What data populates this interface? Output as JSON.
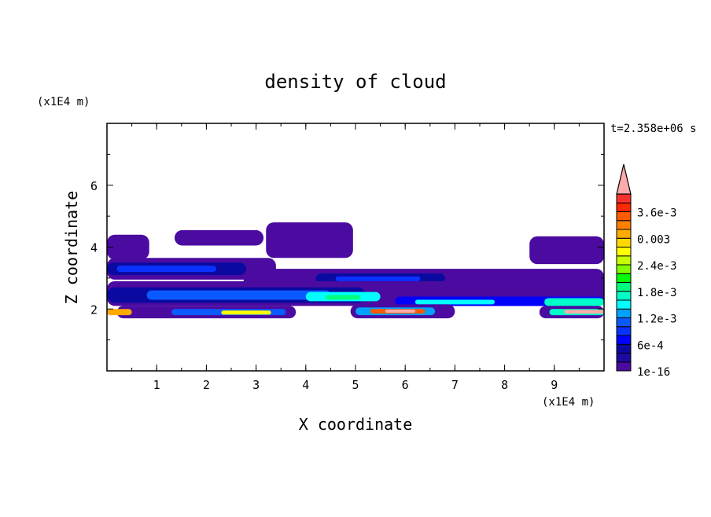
{
  "chart_data": {
    "type": "heatmap",
    "title": "density of cloud",
    "xlabel": "X coordinate",
    "ylabel": "Z coordinate",
    "x_unit": "(x1E4 m)",
    "y_unit": "(x1E4 m)",
    "time_label": "t=2.358e+06 s",
    "xlim": [
      0,
      10
    ],
    "ylim": [
      0,
      8
    ],
    "x_ticks": [
      "1",
      "2",
      "3",
      "4",
      "5",
      "6",
      "7",
      "8",
      "9"
    ],
    "y_ticks": [
      "2",
      "4",
      "6"
    ],
    "grid": false,
    "colorbar": {
      "position": "right",
      "levels_step": 0.0002,
      "max": 0.004,
      "extend": "max",
      "tick_labels": [
        "1e-16",
        "6e-4",
        "1.2e-3",
        "1.8e-3",
        "2.4e-3",
        "0.003",
        "3.6e-3"
      ],
      "colors": [
        "#4b0aa0",
        "#1e0aa0",
        "#0a0aa0",
        "#0000ff",
        "#0a32ff",
        "#0a5aff",
        "#00a0ff",
        "#00ffff",
        "#00ffc8",
        "#00ff80",
        "#00ff00",
        "#80ff00",
        "#c8ff00",
        "#ffff00",
        "#ffd700",
        "#ffaa00",
        "#ff8000",
        "#ff5a00",
        "#ff2800",
        "#ff3030"
      ],
      "over_color": "#ffaaaa"
    },
    "regions": [
      {
        "x": [
          0,
          0.85
        ],
        "z": [
          3.6,
          4.4
        ],
        "level": 0
      },
      {
        "x": [
          1.36,
          3.15
        ],
        "z": [
          4.05,
          4.55
        ],
        "level": 0
      },
      {
        "x": [
          3.2,
          4.95
        ],
        "z": [
          3.65,
          4.8
        ],
        "level": 0
      },
      {
        "x": [
          8.5,
          10
        ],
        "z": [
          3.45,
          4.35
        ],
        "level": 0
      },
      {
        "x": [
          0,
          3.4
        ],
        "z": [
          2.95,
          3.65
        ],
        "level": 0
      },
      {
        "x": [
          0,
          2.8
        ],
        "z": [
          3.1,
          3.5
        ],
        "level": 2
      },
      {
        "x": [
          0.2,
          2.2
        ],
        "z": [
          3.2,
          3.4
        ],
        "level": 4
      },
      {
        "x": [
          2.75,
          10
        ],
        "z": [
          2.5,
          3.3
        ],
        "level": 0
      },
      {
        "x": [
          4.2,
          6.8
        ],
        "z": [
          2.8,
          3.15
        ],
        "level": 2
      },
      {
        "x": [
          4.6,
          6.3
        ],
        "z": [
          2.9,
          3.05
        ],
        "level": 4
      },
      {
        "x": [
          0,
          10
        ],
        "z": [
          2.1,
          2.9
        ],
        "level": 0
      },
      {
        "x": [
          0,
          5.2
        ],
        "z": [
          2.2,
          2.7
        ],
        "level": 2
      },
      {
        "x": [
          0.8,
          4.5
        ],
        "z": [
          2.3,
          2.6
        ],
        "level": 5
      },
      {
        "x": [
          4,
          5.5
        ],
        "z": [
          2.25,
          2.55
        ],
        "level": 7
      },
      {
        "x": [
          4.4,
          5.1
        ],
        "z": [
          2.3,
          2.45
        ],
        "level": 9
      },
      {
        "x": [
          5.8,
          10
        ],
        "z": [
          2.1,
          2.4
        ],
        "level": 3
      },
      {
        "x": [
          6.2,
          7.8
        ],
        "z": [
          2.15,
          2.3
        ],
        "level": 7
      },
      {
        "x": [
          8.8,
          10
        ],
        "z": [
          2.1,
          2.35
        ],
        "level": 8
      },
      {
        "x": [
          0.2,
          3.8
        ],
        "z": [
          1.7,
          2.1
        ],
        "level": 0
      },
      {
        "x": [
          1.3,
          3.6
        ],
        "z": [
          1.8,
          2.0
        ],
        "level": 5
      },
      {
        "x": [
          2.3,
          3.3
        ],
        "z": [
          1.82,
          1.95
        ],
        "level": 13
      },
      {
        "x": [
          0,
          0.5
        ],
        "z": [
          1.8,
          2.0
        ],
        "level": 15
      },
      {
        "x": [
          4.9,
          7.0
        ],
        "z": [
          1.7,
          2.15
        ],
        "level": 0
      },
      {
        "x": [
          5.0,
          6.6
        ],
        "z": [
          1.8,
          2.05
        ],
        "level": 6
      },
      {
        "x": [
          5.3,
          6.4
        ],
        "z": [
          1.85,
          2.0
        ],
        "level": 17
      },
      {
        "x": [
          5.6,
          6.2
        ],
        "z": [
          1.88,
          1.98
        ],
        "level": 20
      },
      {
        "x": [
          8.7,
          10
        ],
        "z": [
          1.7,
          2.1
        ],
        "level": 0
      },
      {
        "x": [
          8.9,
          10
        ],
        "z": [
          1.8,
          2.0
        ],
        "level": 8
      },
      {
        "x": [
          9.2,
          10
        ],
        "z": [
          1.85,
          1.97
        ],
        "level": 20
      }
    ]
  }
}
